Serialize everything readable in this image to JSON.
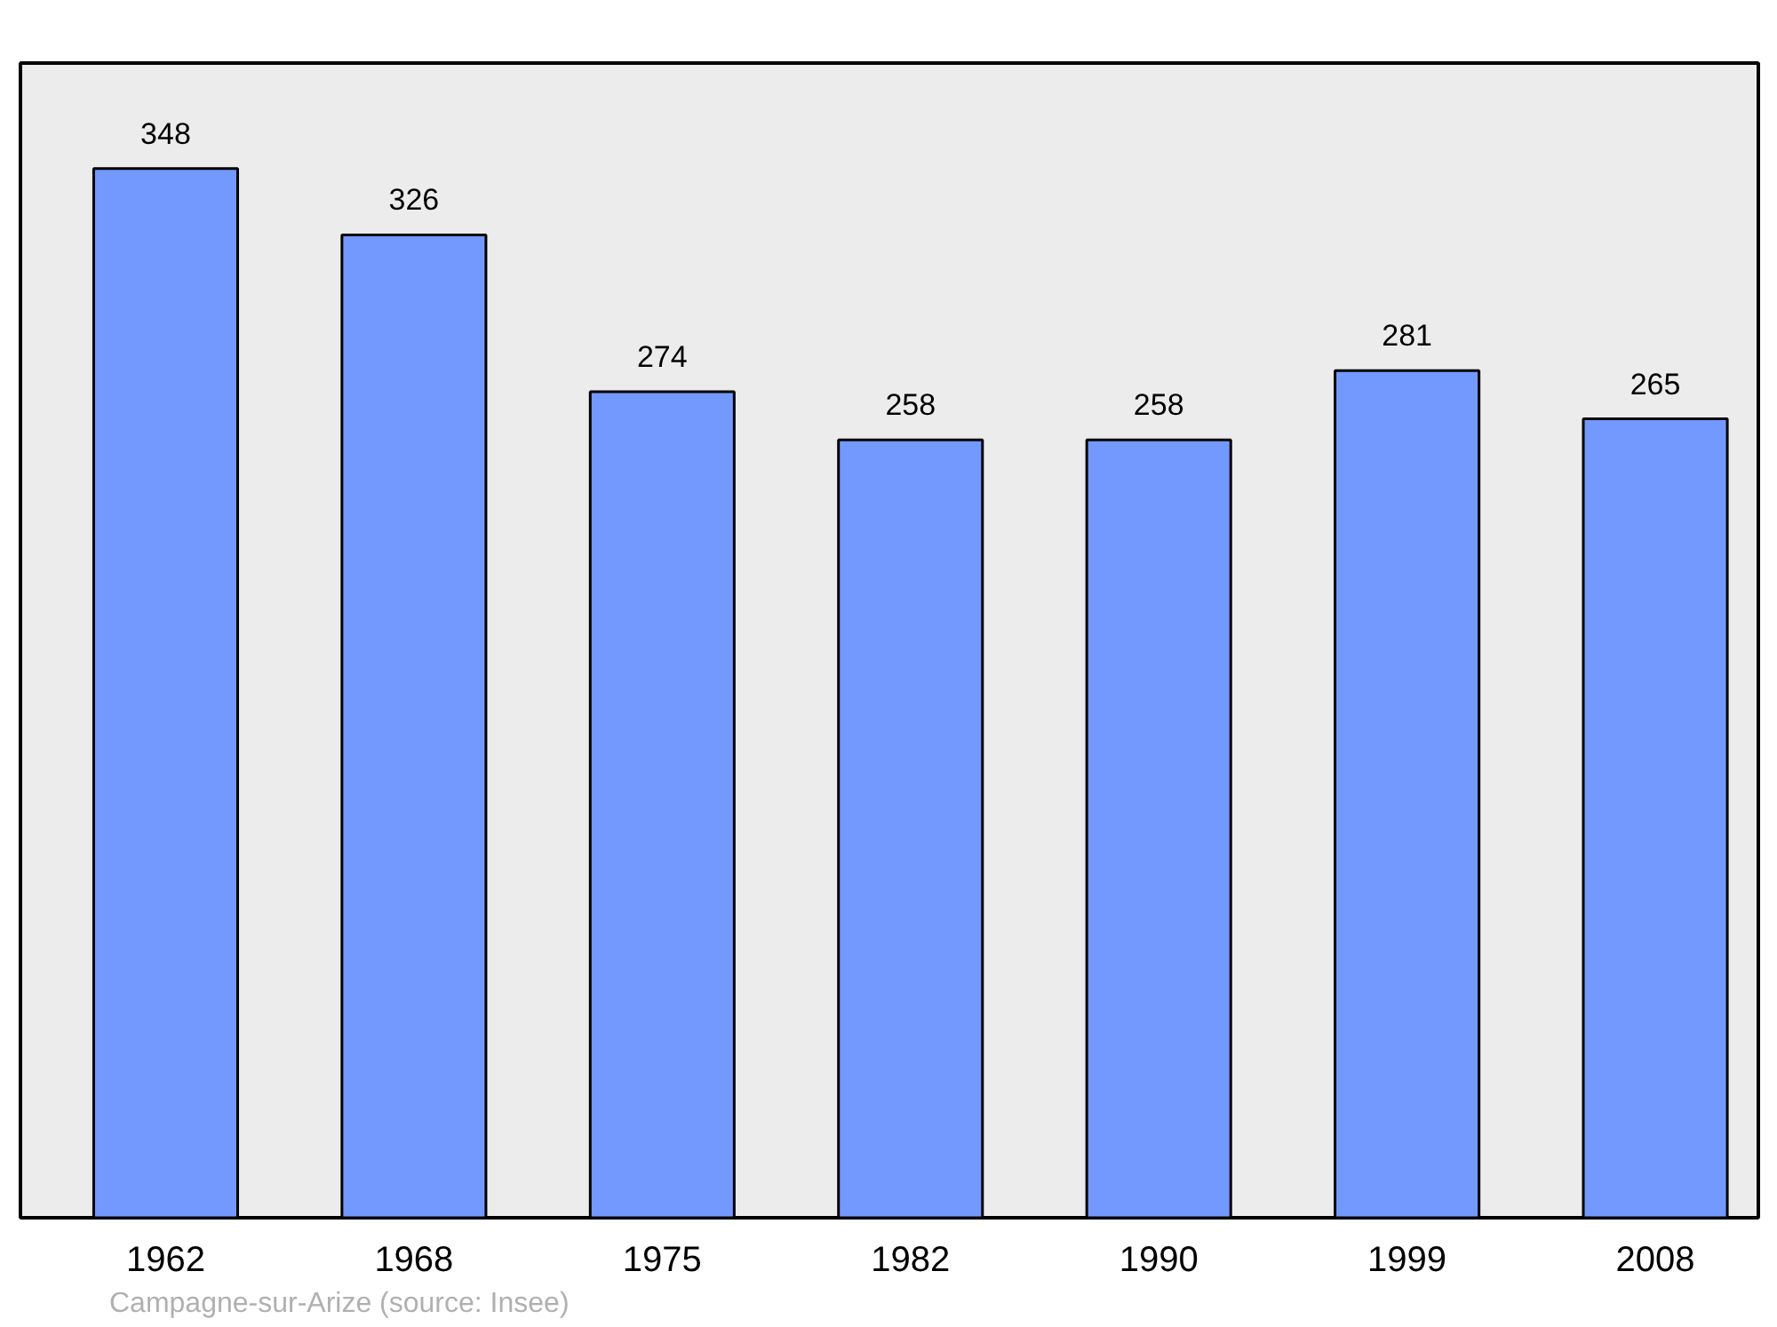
{
  "chart_data": {
    "type": "bar",
    "categories": [
      "1962",
      "1968",
      "1975",
      "1982",
      "1990",
      "1999",
      "2008"
    ],
    "values": [
      348,
      326,
      274,
      258,
      258,
      281,
      265
    ],
    "color": "#7399ff",
    "ylim": [
      0,
      383
    ],
    "tick_labels": "x",
    "data_labels": true,
    "annotations": [
      "Campagne-sur-Arize    (source: Insee)"
    ]
  }
}
